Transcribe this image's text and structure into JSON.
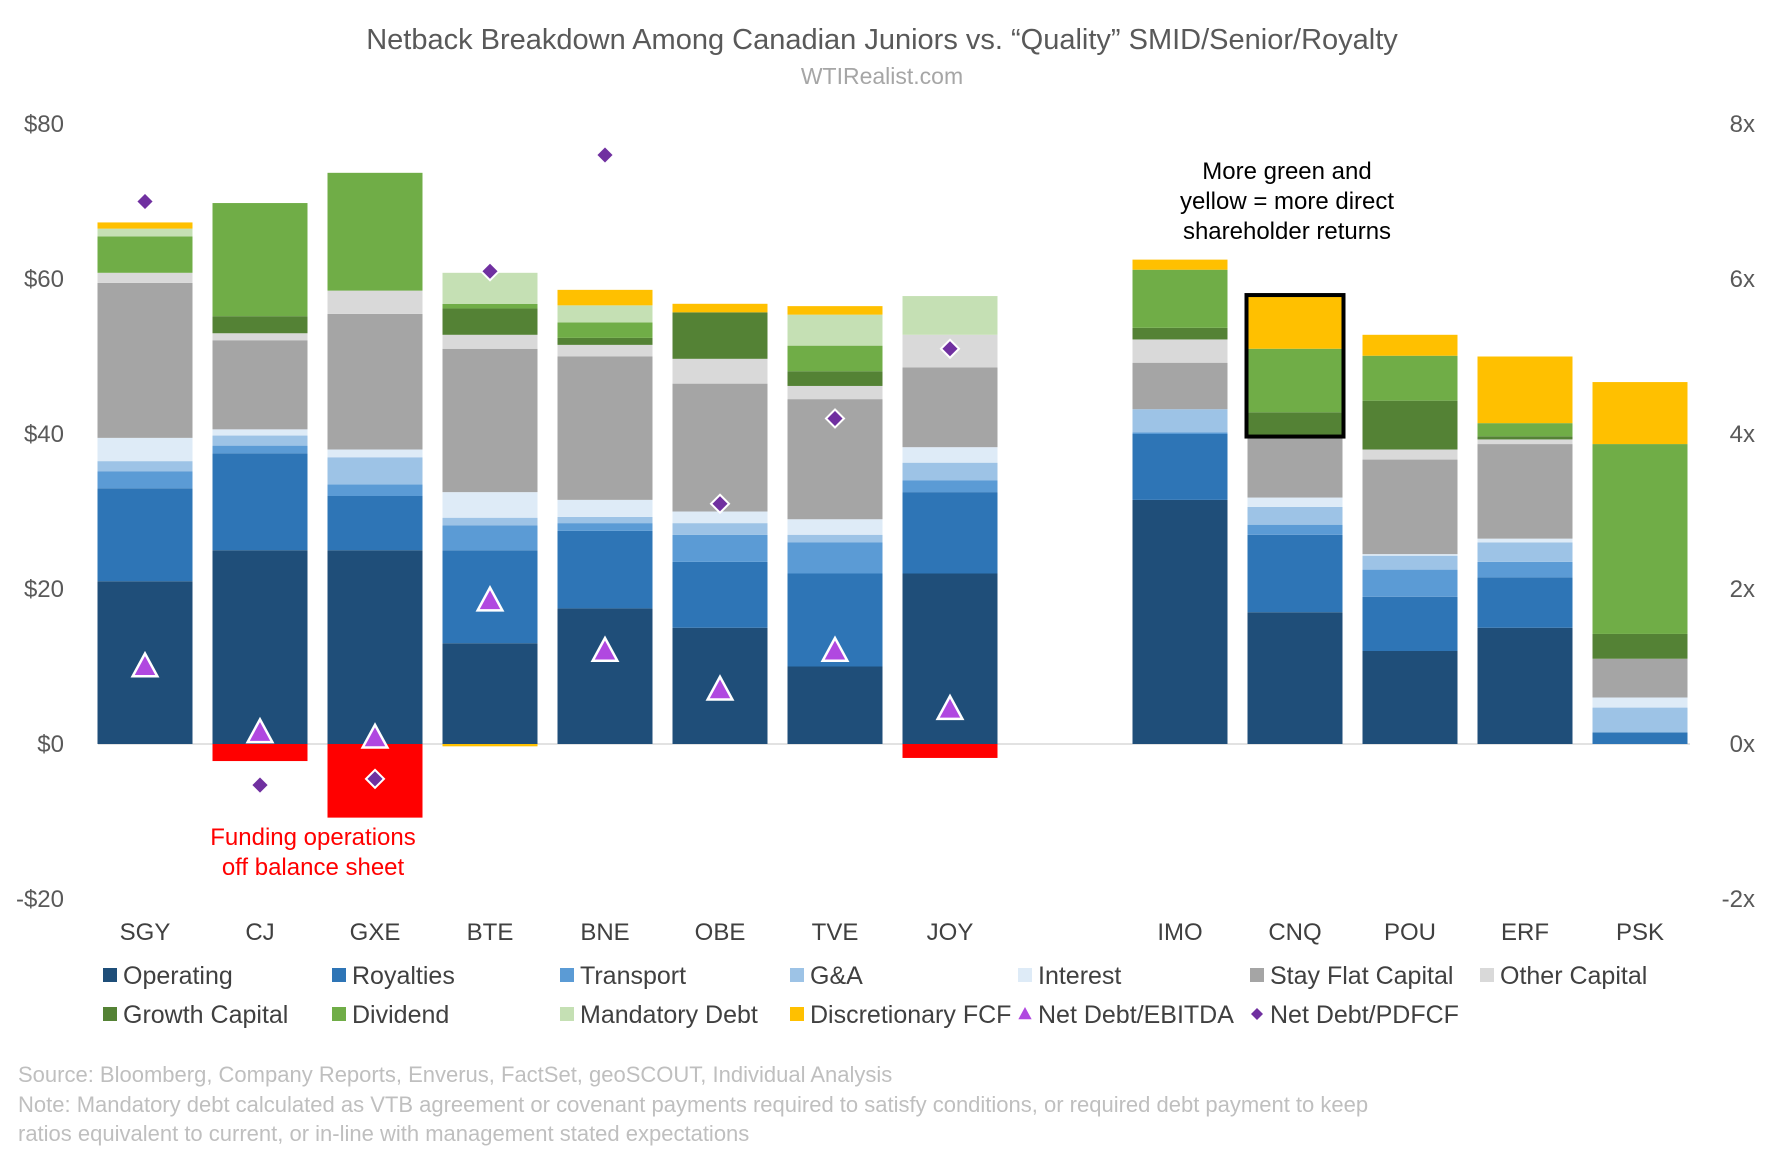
{
  "chart_data": {
    "type": "bar",
    "stacked": true,
    "title": "Netback Breakdown Among Canadian Juniors vs. “Quality” SMID/Senior/Royalty",
    "subtitle": "WTIRealist.com",
    "categories": [
      "SGY",
      "CJ",
      "GXE",
      "BTE",
      "BNE",
      "OBE",
      "TVE",
      "JOY",
      "IMO",
      "CNQ",
      "POU",
      "ERF",
      "PSK"
    ],
    "category_groups": [
      [
        "SGY",
        "CJ",
        "GXE",
        "BTE",
        "BNE",
        "OBE",
        "TVE",
        "JOY"
      ],
      [
        "IMO",
        "CNQ",
        "POU",
        "ERF",
        "PSK"
      ]
    ],
    "y_left": {
      "ylim": [
        -20,
        80
      ],
      "ticks": [
        -20,
        0,
        20,
        40,
        60,
        80
      ],
      "tick_labels": [
        "-$20",
        "$0",
        "$20",
        "$40",
        "$60",
        "$80"
      ]
    },
    "y_right": {
      "ylim": [
        -2,
        8
      ],
      "ticks": [
        -2,
        0,
        2,
        4,
        6,
        8
      ],
      "tick_labels": [
        "-2x",
        "0x",
        "2x",
        "4x",
        "6x",
        "8x"
      ]
    },
    "series": [
      {
        "name": "Operating",
        "color": "#1f4e79",
        "values": [
          21,
          25,
          25,
          13,
          17.5,
          15,
          10,
          22,
          31.5,
          17,
          12,
          15,
          0
        ]
      },
      {
        "name": "Royalties",
        "color": "#2e75b6",
        "values": [
          12,
          12.5,
          7,
          12,
          10,
          8.5,
          12,
          10.5,
          8.5,
          10,
          7,
          6.5,
          1.5
        ]
      },
      {
        "name": "Transport",
        "color": "#5b9bd5",
        "values": [
          2.2,
          1,
          1.5,
          3.2,
          1,
          3.5,
          4,
          1.5,
          0.2,
          1.3,
          3.5,
          2,
          0
        ]
      },
      {
        "name": "G&A",
        "color": "#9dc3e6",
        "values": [
          1.3,
          1.3,
          3.5,
          1,
          0.8,
          1.5,
          1,
          2.3,
          3,
          2.3,
          1.8,
          2.5,
          3.2
        ]
      },
      {
        "name": "Interest",
        "color": "#deebf7",
        "values": [
          3,
          0.8,
          1,
          3.3,
          2.2,
          1.5,
          2,
          2,
          0,
          1.2,
          0.2,
          0.5,
          1.3
        ]
      },
      {
        "name": "Stay Flat Capital",
        "color": "#a5a5a5",
        "values": [
          20,
          11.5,
          17.5,
          18.5,
          18.5,
          16.5,
          15.5,
          10.3,
          6,
          8,
          12.2,
          12.2,
          5
        ]
      },
      {
        "name": "Other Capital",
        "color": "#d9d9d9",
        "values": [
          1.3,
          0.9,
          3,
          1.8,
          1.5,
          3.2,
          1.7,
          4.2,
          3,
          0,
          1.3,
          0.6,
          0
        ]
      },
      {
        "name": "Growth Capital",
        "color": "#548235",
        "values": [
          0,
          2.2,
          0,
          3.4,
          0.9,
          6,
          1.9,
          0,
          1.5,
          3,
          6.3,
          0.4,
          3.2
        ]
      },
      {
        "name": "Dividend",
        "color": "#70ad47",
        "values": [
          4.7,
          14.6,
          15.2,
          0.6,
          2,
          0,
          3.3,
          0,
          7.5,
          8.2,
          5.8,
          1.7,
          24.5
        ]
      },
      {
        "name": "Mandatory Debt",
        "color": "#c5e0b4",
        "values": [
          1,
          0,
          0,
          4,
          2.2,
          0,
          4,
          5,
          0,
          0,
          0,
          0,
          0
        ]
      },
      {
        "name": "Discretionary FCF",
        "color": "#ffc000",
        "values": [
          0.8,
          0,
          0,
          -0.3,
          2,
          1.1,
          1.1,
          0,
          1.3,
          6.8,
          2.7,
          8.6,
          8
        ]
      },
      {
        "name": "Funding (negative)",
        "color": "#ff0000",
        "values": [
          0,
          -2.2,
          -9.5,
          0,
          0,
          0,
          0,
          -1.8,
          0,
          0,
          0,
          0,
          0
        ]
      }
    ],
    "markers": [
      {
        "name": "Net Debt/EBITDA",
        "axis": "right",
        "shape": "triangle",
        "values": [
          1.0,
          0.15,
          0.08,
          1.85,
          1.2,
          0.7,
          1.2,
          0.45,
          null,
          null,
          null,
          null,
          null
        ]
      },
      {
        "name": "Net Debt/PDFCF",
        "axis": "right",
        "shape": "diamond",
        "values": [
          7.0,
          -0.53,
          -0.45,
          6.1,
          7.6,
          3.1,
          4.2,
          5.1,
          null,
          null,
          null,
          null,
          null
        ]
      }
    ],
    "legend": [
      "Operating",
      "Royalties",
      "Transport",
      "G&A",
      "Interest",
      "Stay Flat Capital",
      "Other Capital",
      "Growth Capital",
      "Dividend",
      "Mandatory Debt",
      "Discretionary FCF",
      "Net Debt/EBITDA",
      "Net Debt/PDFCF"
    ],
    "legend_placement": "bottom",
    "annotations": {
      "cnq_callout": [
        "More green and",
        "yellow = more direct",
        "shareholder returns"
      ],
      "funding_callout": [
        "Funding operations",
        "off balance sheet"
      ]
    },
    "highlight_category": "CNQ"
  },
  "footer": {
    "source": "Source: Bloomberg, Company Reports, Enverus, FactSet, geoSCOUT, Individual Analysis",
    "note_lines": [
      "Note: Mandatory debt calculated as VTB agreement or covenant payments required to satisfy conditions, or required debt payment to keep",
      "ratios equivalent to current, or in-line with management stated expectations"
    ]
  },
  "colors": {
    "Operating": "#1f4e79",
    "Royalties": "#2e75b6",
    "Transport": "#5b9bd5",
    "G&A": "#9dc3e6",
    "Interest": "#deebf7",
    "Stay Flat Capital": "#a5a5a5",
    "Other Capital": "#d9d9d9",
    "Growth Capital": "#548235",
    "Dividend": "#70ad47",
    "Mandatory Debt": "#c5e0b4",
    "Discretionary FCF": "#ffc000",
    "Funding": "#ff0000",
    "Net Debt/EBITDA": "#b048e0",
    "Net Debt/PDFCF": "#7030a0"
  }
}
